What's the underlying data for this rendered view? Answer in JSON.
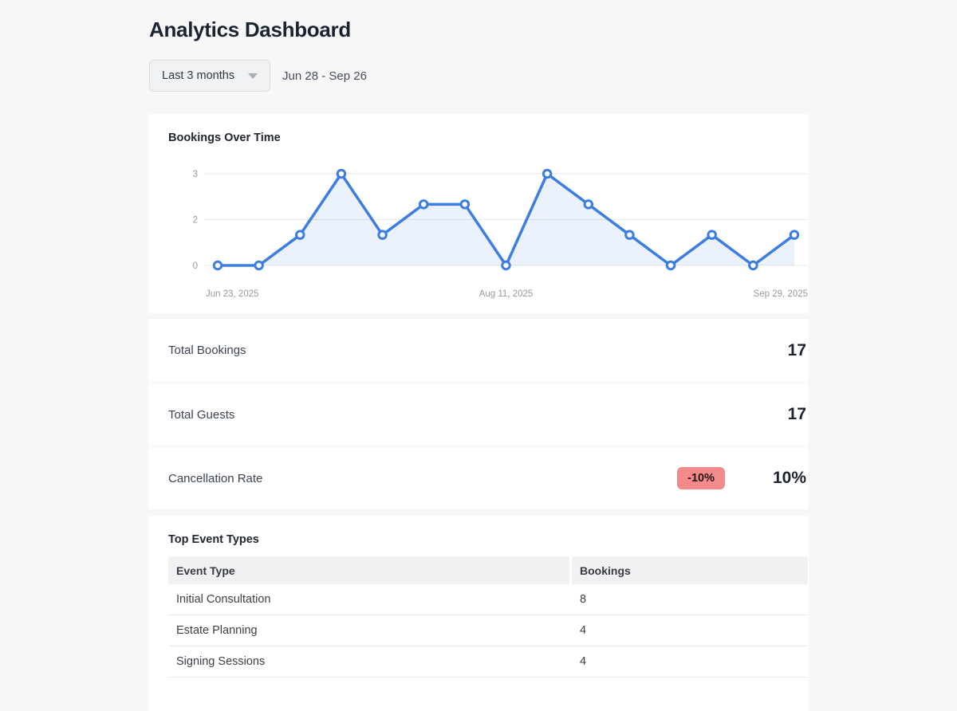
{
  "page": {
    "title": "Analytics Dashboard"
  },
  "filters": {
    "range_selector_value": "Last 3 months",
    "date_range": "Jun 28 - Sep 26"
  },
  "chart_card": {
    "title": "Bookings Over Time"
  },
  "chart_data": {
    "type": "line",
    "title": "Bookings Over Time",
    "values": [
      0,
      0,
      1,
      3,
      1,
      2,
      2,
      0,
      3,
      2,
      1,
      0,
      1,
      0,
      1
    ],
    "x_tick_labels": [
      {
        "index": 0,
        "label": "Jun 23, 2025"
      },
      {
        "index": 7,
        "label": "Aug 11, 2025"
      },
      {
        "index": 14,
        "label": "Sep 29, 2025"
      }
    ],
    "y_ticks": [
      {
        "value": 0,
        "label": "0"
      },
      {
        "value": 1.5,
        "label": "2"
      },
      {
        "value": 3,
        "label": "3"
      }
    ],
    "ylim": [
      0,
      3
    ],
    "grid": true,
    "legend": false,
    "line_color": "#3c7de2",
    "area_fill_color": "rgba(60,125,226,0.10)",
    "marker_style": "open-circle",
    "axis_text_color": "#969aa1",
    "gridline_color": "#e7e8ea"
  },
  "stats": [
    {
      "label": "Total Bookings",
      "value": "17"
    },
    {
      "label": "Total Guests",
      "value": "17"
    },
    {
      "label": "Cancellation Rate",
      "value": "10%",
      "badge": "-10%",
      "badge_color": "#f48a8a"
    }
  ],
  "table_card": {
    "title": "Top Event Types",
    "columns": [
      "Event Type",
      "Bookings"
    ],
    "rows": [
      [
        "Initial Consultation",
        "8"
      ],
      [
        "Estate Planning",
        "4"
      ],
      [
        "Signing Sessions",
        "4"
      ]
    ]
  }
}
